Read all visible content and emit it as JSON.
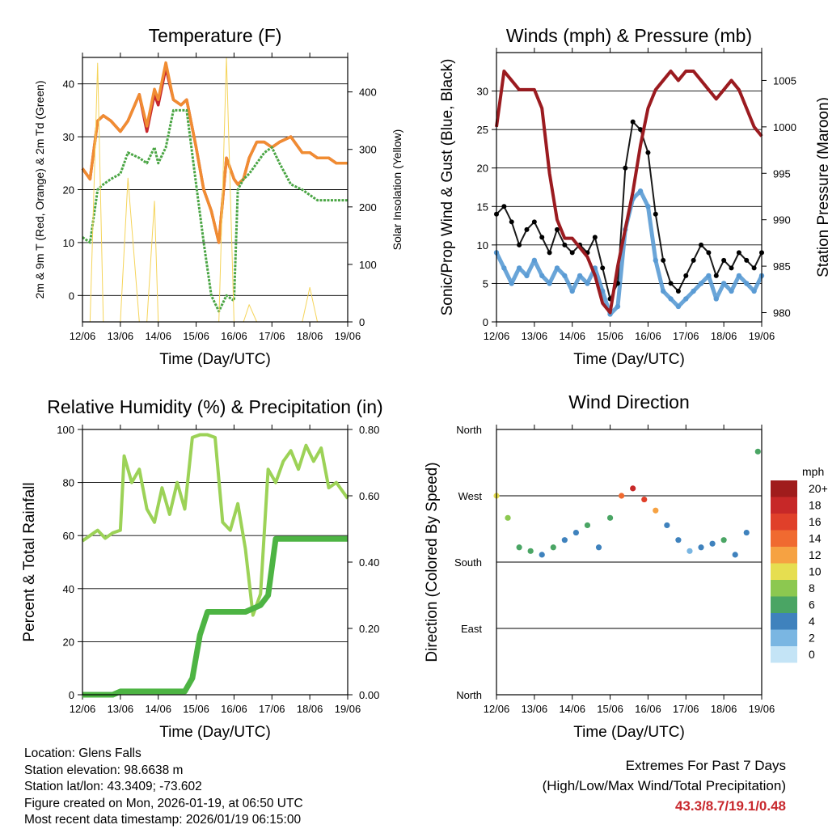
{
  "figure": {
    "xtick_labels": [
      "12/06",
      "13/06",
      "14/06",
      "15/06",
      "16/06",
      "17/06",
      "18/06",
      "19/06"
    ],
    "xlabel": "Time (Day/UTC)"
  },
  "chart_data": [
    {
      "id": "temperature",
      "type": "line",
      "title": "Temperature (F)",
      "ylabel": "2m & 9m T (Red, Orange) & 2m Td (Green)",
      "ylabel_right": "Solar Insolation (Yellow)",
      "ylim": [
        -5,
        45
      ],
      "yticks": [
        0,
        10,
        20,
        30,
        40
      ],
      "ylim_right": [
        0,
        460
      ],
      "yticks_right": [
        0,
        100,
        200,
        300,
        400
      ],
      "x_days": [
        0,
        0.2,
        0.4,
        0.55,
        0.75,
        1.0,
        1.2,
        1.5,
        1.7,
        1.9,
        2.0,
        2.2,
        2.4,
        2.6,
        2.75,
        3.0,
        3.2,
        3.4,
        3.6,
        3.8,
        4.0,
        4.1,
        4.25,
        4.4,
        4.6,
        4.8,
        5.0,
        5.2,
        5.5,
        5.8,
        6.0,
        6.2,
        6.5,
        6.7,
        7.0
      ],
      "series": [
        {
          "name": "2m T",
          "color": "#c8282d",
          "values": [
            24,
            22,
            33,
            34,
            33,
            31,
            33,
            38,
            31,
            38,
            36,
            43,
            37,
            36,
            37,
            28,
            20,
            16,
            10,
            26,
            22,
            21,
            22,
            26,
            29,
            29,
            28,
            29,
            30,
            27,
            27,
            26,
            26,
            25,
            25
          ]
        },
        {
          "name": "9m T",
          "color": "#f08c32",
          "values": [
            24,
            22,
            33,
            34,
            33,
            31,
            33,
            38,
            32,
            39,
            37,
            44,
            37,
            36,
            37,
            28,
            20,
            16,
            10,
            26,
            22,
            21,
            22,
            26,
            29,
            29,
            28,
            29,
            30,
            27,
            27,
            26,
            26,
            25,
            25
          ]
        },
        {
          "name": "2m Td",
          "color": "#4aa544",
          "values": [
            11,
            10,
            20,
            21,
            22,
            23,
            27,
            26,
            25,
            28,
            25,
            28,
            35,
            35,
            35,
            21,
            10,
            0,
            -3,
            0,
            -1,
            20,
            22,
            23,
            25,
            27,
            28,
            25,
            21,
            20,
            19,
            18,
            18,
            18,
            18
          ]
        },
        {
          "name": "Solar Insolation",
          "color": "#f5d45a",
          "axis": "right",
          "values": [
            0,
            0,
            450,
            0,
            0,
            0,
            250,
            0,
            0,
            210,
            0,
            0,
            0,
            0,
            0,
            0,
            0,
            0,
            0,
            460,
            0,
            0,
            0,
            30,
            0,
            0,
            0,
            0,
            0,
            0,
            60,
            0,
            0,
            0,
            0
          ]
        }
      ]
    },
    {
      "id": "winds",
      "type": "scatter",
      "title": "Winds (mph) & Pressure (mb)",
      "ylabel": "Sonic/Prop Wind & Gust (Blue, Black)",
      "ylabel_right": "Station Pressure (Maroon)",
      "ylim": [
        0,
        35
      ],
      "yticks": [
        0,
        5,
        10,
        15,
        20,
        25,
        30
      ],
      "ylim_right": [
        979,
        1008
      ],
      "yticks_right": [
        980,
        985,
        990,
        995,
        1000,
        1005
      ],
      "x_days": [
        0,
        0.2,
        0.4,
        0.6,
        0.8,
        1.0,
        1.2,
        1.4,
        1.6,
        1.8,
        2.0,
        2.2,
        2.4,
        2.6,
        2.8,
        3.0,
        3.2,
        3.4,
        3.6,
        3.8,
        4.0,
        4.2,
        4.4,
        4.6,
        4.8,
        5.0,
        5.2,
        5.4,
        5.6,
        5.8,
        6.0,
        6.2,
        6.4,
        6.6,
        6.8,
        7.0
      ],
      "series": [
        {
          "name": "Sonic/Prop Wind",
          "color": "#5a9bd4",
          "values": [
            9,
            7,
            5,
            7,
            6,
            8,
            6,
            5,
            7,
            6,
            4,
            6,
            5,
            7,
            4,
            1,
            2,
            12,
            16,
            17,
            15,
            8,
            4,
            3,
            2,
            3,
            4,
            5,
            6,
            3,
            5,
            4,
            6,
            5,
            4,
            6
          ]
        },
        {
          "name": "Gust",
          "color": "#000000",
          "values": [
            14,
            15,
            13,
            10,
            12,
            13,
            11,
            9,
            12,
            10,
            9,
            10,
            9,
            11,
            7,
            3,
            5,
            20,
            26,
            25,
            22,
            14,
            8,
            5,
            4,
            6,
            8,
            10,
            9,
            6,
            8,
            7,
            9,
            8,
            7,
            9
          ]
        },
        {
          "name": "Station Pressure",
          "color": "#9b1b20",
          "axis": "right",
          "values": [
            1000,
            1006,
            1005,
            1004,
            1004,
            1004,
            1002,
            995,
            990,
            988,
            988,
            987,
            986,
            984,
            981,
            980,
            985,
            989,
            993,
            998,
            1002,
            1004,
            1005,
            1006,
            1005,
            1006,
            1006,
            1005,
            1004,
            1003,
            1004,
            1005,
            1004,
            1002,
            1000,
            999
          ]
        }
      ]
    },
    {
      "id": "humidity",
      "type": "line",
      "title": "Relative Humidity (%) & Precipitation (in)",
      "ylabel": "Percent & Total Rainfall",
      "ylim": [
        0,
        100
      ],
      "yticks": [
        0,
        20,
        40,
        60,
        80,
        100
      ],
      "ylim_right": [
        0,
        0.8
      ],
      "yticks_right": [
        "0.00",
        "0.20",
        "0.40",
        "0.60",
        "0.80"
      ],
      "x_days": [
        0,
        0.2,
        0.4,
        0.6,
        0.8,
        1.0,
        1.1,
        1.3,
        1.5,
        1.7,
        1.9,
        2.1,
        2.3,
        2.5,
        2.7,
        2.9,
        3.1,
        3.3,
        3.5,
        3.7,
        3.9,
        4.1,
        4.3,
        4.5,
        4.7,
        4.9,
        5.1,
        5.3,
        5.5,
        5.7,
        5.9,
        6.1,
        6.3,
        6.5,
        6.7,
        7.0
      ],
      "series": [
        {
          "name": "Relative Humidity",
          "color": "#9cd257",
          "values": [
            58,
            60,
            62,
            59,
            61,
            62,
            90,
            80,
            85,
            70,
            65,
            78,
            68,
            80,
            70,
            97,
            98,
            98,
            97,
            65,
            62,
            72,
            55,
            30,
            38,
            85,
            80,
            88,
            92,
            85,
            94,
            88,
            93,
            78,
            80,
            74
          ]
        },
        {
          "name": "Total Precipitation",
          "color": "#4db443",
          "axis": "right",
          "values": [
            0,
            0,
            0,
            0,
            0,
            0.01,
            0.01,
            0.01,
            0.01,
            0.01,
            0.01,
            0.01,
            0.01,
            0.01,
            0.01,
            0.05,
            0.18,
            0.25,
            0.25,
            0.25,
            0.25,
            0.25,
            0.25,
            0.26,
            0.27,
            0.3,
            0.47,
            0.47,
            0.47,
            0.47,
            0.47,
            0.47,
            0.47,
            0.47,
            0.47,
            0.47
          ]
        }
      ]
    },
    {
      "id": "direction",
      "type": "scatter",
      "title": "Wind Direction",
      "ylabel": "Direction (Colored By Speed)",
      "ytick_labels": [
        "North",
        "East",
        "South",
        "West",
        "North"
      ],
      "ylim": [
        0,
        360
      ],
      "colorbar": {
        "title": "mph",
        "labels": [
          "20+",
          "18",
          "16",
          "14",
          "12",
          "10",
          "8",
          "6",
          "4",
          "2",
          "0"
        ],
        "colors": [
          "#a01c1c",
          "#c72828",
          "#e0402a",
          "#f06a30",
          "#f6a242",
          "#e6de50",
          "#8cc850",
          "#4aa564",
          "#3f82bd",
          "#7ab6e2",
          "#c4e4f6"
        ]
      },
      "x_days": [
        0,
        0.3,
        0.6,
        0.9,
        1.2,
        1.5,
        1.8,
        2.1,
        2.4,
        2.7,
        3.0,
        3.3,
        3.6,
        3.9,
        4.2,
        4.5,
        4.8,
        5.1,
        5.4,
        5.7,
        6.0,
        6.3,
        6.6,
        6.9
      ],
      "series": [
        {
          "name": "direction",
          "values": [
            270,
            240,
            200,
            195,
            190,
            200,
            210,
            220,
            230,
            200,
            240,
            270,
            280,
            265,
            250,
            230,
            210,
            195,
            200,
            205,
            210,
            190,
            220,
            330
          ]
        },
        {
          "name": "speed",
          "values": [
            10,
            8,
            6,
            5,
            4,
            5,
            3,
            4,
            5,
            4,
            6,
            14,
            18,
            16,
            12,
            4,
            3,
            2,
            4,
            3,
            5,
            3,
            4,
            5
          ]
        }
      ]
    }
  ],
  "footer": {
    "location": "Location: Glens Falls",
    "elevation": "Station elevation: 98.6638 m",
    "latlon": "Station lat/lon: 43.3409; -73.602",
    "created": "Figure created on Mon, 2026-01-19, at 06:50 UTC",
    "recent": "Most recent data timestamp: 2026/01/19 06:15:00"
  },
  "extremes": {
    "line1": "Extremes For Past 7 Days",
    "line2": "(High/Low/Max Wind/Total Precipitation)",
    "values": "43.3/8.7/19.1/0.48"
  }
}
